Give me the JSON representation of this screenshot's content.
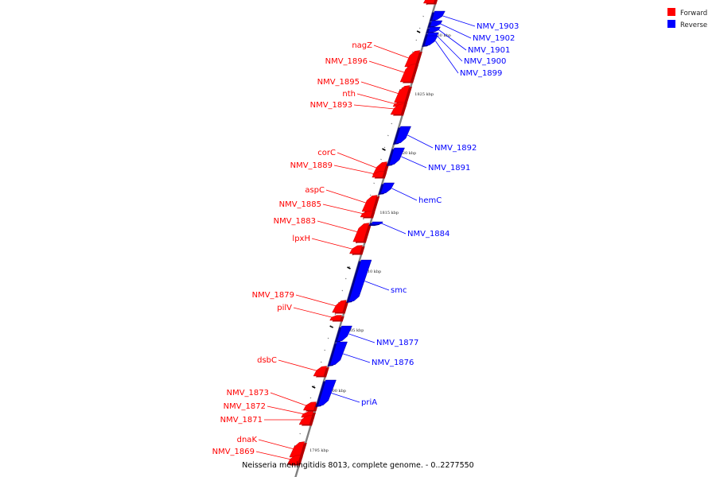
{
  "legend": {
    "forward_label": "Forward",
    "reverse_label": "Reverse",
    "forward_color": "#ff0000",
    "reverse_color": "#0000ff"
  },
  "caption": "Neisseria meningitidis 8013, complete genome. - 0..2277550",
  "colors": {
    "backbone": "#808080"
  },
  "genome_map": {
    "ticks": [
      "1830 kbp",
      "1825 kbp",
      "1820 kbp",
      "1815 kbp",
      "1810 kbp",
      "1805 kbp",
      "1800 kbp",
      "1795 kbp"
    ],
    "forward_genes": [
      "nagZ",
      "NMV_1896",
      "NMV_1895",
      "nth",
      "NMV_1893",
      "corC",
      "NMV_1889",
      "aspC",
      "NMV_1885",
      "NMV_1883",
      "lpxH",
      "NMV_1879",
      "pilV",
      "dsbC",
      "NMV_1873",
      "NMV_1872",
      "NMV_1871",
      "dnaK",
      "NMV_1869"
    ],
    "reverse_genes": [
      "NMV_1903",
      "NMV_1902",
      "NMV_1901",
      "NMV_1900",
      "NMV_1899",
      "NMV_1892",
      "NMV_1891",
      "hemC",
      "NMV_1884",
      "smc",
      "NMV_1877",
      "NMV_1876",
      "priA"
    ]
  }
}
